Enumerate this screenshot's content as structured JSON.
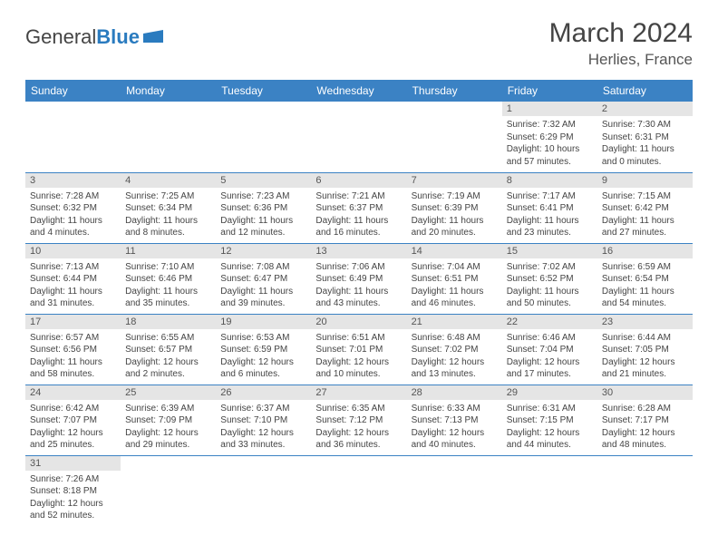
{
  "brand": {
    "part1": "General",
    "part2": "Blue"
  },
  "title": "March 2024",
  "location": "Herlies, France",
  "colors": {
    "header_bg": "#3b82c4",
    "daynum_bg": "#e5e5e5",
    "border": "#3b82c4",
    "brand_blue": "#2a7bbf"
  },
  "weekdays": [
    "Sunday",
    "Monday",
    "Tuesday",
    "Wednesday",
    "Thursday",
    "Friday",
    "Saturday"
  ],
  "grid": [
    [
      null,
      null,
      null,
      null,
      null,
      {
        "n": "1",
        "sr": "Sunrise: 7:32 AM",
        "ss": "Sunset: 6:29 PM",
        "d1": "Daylight: 10 hours",
        "d2": "and 57 minutes."
      },
      {
        "n": "2",
        "sr": "Sunrise: 7:30 AM",
        "ss": "Sunset: 6:31 PM",
        "d1": "Daylight: 11 hours",
        "d2": "and 0 minutes."
      }
    ],
    [
      {
        "n": "3",
        "sr": "Sunrise: 7:28 AM",
        "ss": "Sunset: 6:32 PM",
        "d1": "Daylight: 11 hours",
        "d2": "and 4 minutes."
      },
      {
        "n": "4",
        "sr": "Sunrise: 7:25 AM",
        "ss": "Sunset: 6:34 PM",
        "d1": "Daylight: 11 hours",
        "d2": "and 8 minutes."
      },
      {
        "n": "5",
        "sr": "Sunrise: 7:23 AM",
        "ss": "Sunset: 6:36 PM",
        "d1": "Daylight: 11 hours",
        "d2": "and 12 minutes."
      },
      {
        "n": "6",
        "sr": "Sunrise: 7:21 AM",
        "ss": "Sunset: 6:37 PM",
        "d1": "Daylight: 11 hours",
        "d2": "and 16 minutes."
      },
      {
        "n": "7",
        "sr": "Sunrise: 7:19 AM",
        "ss": "Sunset: 6:39 PM",
        "d1": "Daylight: 11 hours",
        "d2": "and 20 minutes."
      },
      {
        "n": "8",
        "sr": "Sunrise: 7:17 AM",
        "ss": "Sunset: 6:41 PM",
        "d1": "Daylight: 11 hours",
        "d2": "and 23 minutes."
      },
      {
        "n": "9",
        "sr": "Sunrise: 7:15 AM",
        "ss": "Sunset: 6:42 PM",
        "d1": "Daylight: 11 hours",
        "d2": "and 27 minutes."
      }
    ],
    [
      {
        "n": "10",
        "sr": "Sunrise: 7:13 AM",
        "ss": "Sunset: 6:44 PM",
        "d1": "Daylight: 11 hours",
        "d2": "and 31 minutes."
      },
      {
        "n": "11",
        "sr": "Sunrise: 7:10 AM",
        "ss": "Sunset: 6:46 PM",
        "d1": "Daylight: 11 hours",
        "d2": "and 35 minutes."
      },
      {
        "n": "12",
        "sr": "Sunrise: 7:08 AM",
        "ss": "Sunset: 6:47 PM",
        "d1": "Daylight: 11 hours",
        "d2": "and 39 minutes."
      },
      {
        "n": "13",
        "sr": "Sunrise: 7:06 AM",
        "ss": "Sunset: 6:49 PM",
        "d1": "Daylight: 11 hours",
        "d2": "and 43 minutes."
      },
      {
        "n": "14",
        "sr": "Sunrise: 7:04 AM",
        "ss": "Sunset: 6:51 PM",
        "d1": "Daylight: 11 hours",
        "d2": "and 46 minutes."
      },
      {
        "n": "15",
        "sr": "Sunrise: 7:02 AM",
        "ss": "Sunset: 6:52 PM",
        "d1": "Daylight: 11 hours",
        "d2": "and 50 minutes."
      },
      {
        "n": "16",
        "sr": "Sunrise: 6:59 AM",
        "ss": "Sunset: 6:54 PM",
        "d1": "Daylight: 11 hours",
        "d2": "and 54 minutes."
      }
    ],
    [
      {
        "n": "17",
        "sr": "Sunrise: 6:57 AM",
        "ss": "Sunset: 6:56 PM",
        "d1": "Daylight: 11 hours",
        "d2": "and 58 minutes."
      },
      {
        "n": "18",
        "sr": "Sunrise: 6:55 AM",
        "ss": "Sunset: 6:57 PM",
        "d1": "Daylight: 12 hours",
        "d2": "and 2 minutes."
      },
      {
        "n": "19",
        "sr": "Sunrise: 6:53 AM",
        "ss": "Sunset: 6:59 PM",
        "d1": "Daylight: 12 hours",
        "d2": "and 6 minutes."
      },
      {
        "n": "20",
        "sr": "Sunrise: 6:51 AM",
        "ss": "Sunset: 7:01 PM",
        "d1": "Daylight: 12 hours",
        "d2": "and 10 minutes."
      },
      {
        "n": "21",
        "sr": "Sunrise: 6:48 AM",
        "ss": "Sunset: 7:02 PM",
        "d1": "Daylight: 12 hours",
        "d2": "and 13 minutes."
      },
      {
        "n": "22",
        "sr": "Sunrise: 6:46 AM",
        "ss": "Sunset: 7:04 PM",
        "d1": "Daylight: 12 hours",
        "d2": "and 17 minutes."
      },
      {
        "n": "23",
        "sr": "Sunrise: 6:44 AM",
        "ss": "Sunset: 7:05 PM",
        "d1": "Daylight: 12 hours",
        "d2": "and 21 minutes."
      }
    ],
    [
      {
        "n": "24",
        "sr": "Sunrise: 6:42 AM",
        "ss": "Sunset: 7:07 PM",
        "d1": "Daylight: 12 hours",
        "d2": "and 25 minutes."
      },
      {
        "n": "25",
        "sr": "Sunrise: 6:39 AM",
        "ss": "Sunset: 7:09 PM",
        "d1": "Daylight: 12 hours",
        "d2": "and 29 minutes."
      },
      {
        "n": "26",
        "sr": "Sunrise: 6:37 AM",
        "ss": "Sunset: 7:10 PM",
        "d1": "Daylight: 12 hours",
        "d2": "and 33 minutes."
      },
      {
        "n": "27",
        "sr": "Sunrise: 6:35 AM",
        "ss": "Sunset: 7:12 PM",
        "d1": "Daylight: 12 hours",
        "d2": "and 36 minutes."
      },
      {
        "n": "28",
        "sr": "Sunrise: 6:33 AM",
        "ss": "Sunset: 7:13 PM",
        "d1": "Daylight: 12 hours",
        "d2": "and 40 minutes."
      },
      {
        "n": "29",
        "sr": "Sunrise: 6:31 AM",
        "ss": "Sunset: 7:15 PM",
        "d1": "Daylight: 12 hours",
        "d2": "and 44 minutes."
      },
      {
        "n": "30",
        "sr": "Sunrise: 6:28 AM",
        "ss": "Sunset: 7:17 PM",
        "d1": "Daylight: 12 hours",
        "d2": "and 48 minutes."
      }
    ],
    [
      {
        "n": "31",
        "sr": "Sunrise: 7:26 AM",
        "ss": "Sunset: 8:18 PM",
        "d1": "Daylight: 12 hours",
        "d2": "and 52 minutes."
      },
      null,
      null,
      null,
      null,
      null,
      null
    ]
  ]
}
